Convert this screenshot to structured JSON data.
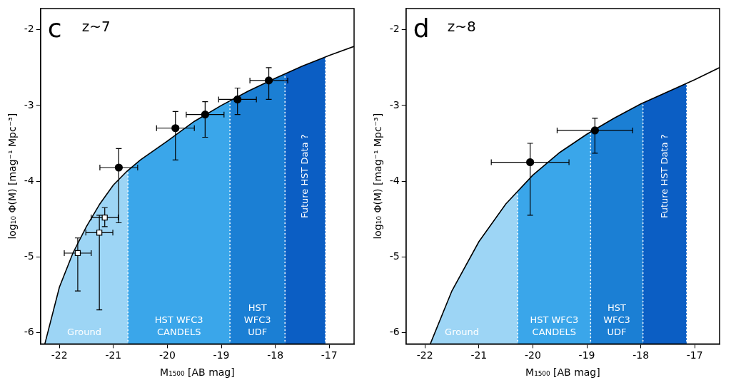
{
  "chart_data": [
    {
      "type": "scatter",
      "panel": "c",
      "title": "z~7",
      "x_label": "M₁₅₀₀ [AB mag]",
      "y_label": "log₁₀ Φ(M) [mag⁻¹ Mpc⁻³]",
      "xlim": [
        -22.35,
        -16.54
      ],
      "xticks": [
        -22,
        -21,
        -20,
        -19,
        -18,
        -17
      ],
      "ylim": [
        -6.15,
        -1.72
      ],
      "yticks": [
        -6,
        -5,
        -4,
        -3,
        -2
      ],
      "grid": false,
      "bands": [
        {
          "text_lines": [
            "Ground"
          ],
          "range": [
            -22.35,
            -20.73
          ],
          "color": "#9dd5f5"
        },
        {
          "text_lines": [
            "HST WFC3",
            "CANDELS"
          ],
          "range": [
            -20.73,
            -18.84
          ],
          "color": "#3aa6ea"
        },
        {
          "text_lines": [
            "HST",
            "WFC3",
            "UDF"
          ],
          "range": [
            -18.84,
            -17.82
          ],
          "color": "#1b7fd4"
        },
        {
          "text_lines": [
            "Future HST Data ?"
          ],
          "range": [
            -17.82,
            -17.07
          ],
          "color": "#0b5ec4"
        }
      ],
      "series": [
        {
          "type": "line",
          "color": "#000000",
          "x": [
            -22.27,
            -22,
            -21.75,
            -21.5,
            -21.25,
            -21,
            -20.75,
            -20.5,
            -20,
            -19.5,
            -19,
            -18.5,
            -18,
            -17.5,
            -17,
            -16.54
          ],
          "values": [
            -6.15,
            -5.4,
            -4.95,
            -4.6,
            -4.3,
            -4.05,
            -3.87,
            -3.72,
            -3.47,
            -3.21,
            -3.0,
            -2.81,
            -2.64,
            -2.48,
            -2.34,
            -2.22
          ]
        },
        {
          "type": "scatter",
          "marker": "circle",
          "color": "#000000",
          "x": [
            -20.9,
            -19.85,
            -19.3,
            -18.7,
            -18.12
          ],
          "values": [
            -3.82,
            -3.3,
            -3.12,
            -2.92,
            -2.67
          ],
          "x_err": [
            0.35,
            0.35,
            0.35,
            0.35,
            0.35
          ],
          "y_err": [
            [
              0.73,
              0.25
            ],
            [
              0.42,
              0.22
            ],
            [
              0.3,
              0.17
            ],
            [
              0.2,
              0.15
            ],
            [
              0.25,
              0.17
            ]
          ]
        },
        {
          "type": "scatter",
          "marker": "square",
          "color": "#000000",
          "x": [
            -21.66,
            -21.26,
            -21.16
          ],
          "values": [
            -4.95,
            -4.68,
            -4.48
          ],
          "x_err": [
            0.25,
            0.25,
            0.25
          ],
          "y_err": [
            [
              0.5,
              0.2
            ],
            [
              1.02,
              0.23
            ],
            [
              0.12,
              0.13
            ]
          ]
        }
      ]
    },
    {
      "type": "scatter",
      "panel": "d",
      "title": "z~8",
      "x_label": "M₁₅₀₀ [AB mag]",
      "y_label": "log₁₀ Φ(M) [mag⁻¹ Mpc⁻³]",
      "xlim": [
        -22.35,
        -16.54
      ],
      "xticks": [
        -22,
        -21,
        -20,
        -19,
        -18,
        -17
      ],
      "ylim": [
        -6.15,
        -1.72
      ],
      "yticks": [
        -6,
        -5,
        -4,
        -3,
        -2
      ],
      "grid": false,
      "bands": [
        {
          "text_lines": [
            "Ground"
          ],
          "range": [
            -22.35,
            -20.28
          ],
          "color": "#9dd5f5"
        },
        {
          "text_lines": [
            "HST WFC3",
            "CANDELS"
          ],
          "range": [
            -20.28,
            -18.93
          ],
          "color": "#3aa6ea"
        },
        {
          "text_lines": [
            "HST",
            "WFC3",
            "UDF"
          ],
          "range": [
            -18.93,
            -17.96
          ],
          "color": "#1b7fd4"
        },
        {
          "text_lines": [
            "Future HST Data ?"
          ],
          "range": [
            -17.96,
            -17.15
          ],
          "color": "#0b5ec4"
        }
      ],
      "series": [
        {
          "type": "line",
          "color": "#000000",
          "x": [
            -21.9,
            -21.5,
            -21,
            -20.5,
            -20,
            -19.5,
            -19,
            -18.5,
            -18,
            -17.5,
            -17,
            -16.54
          ],
          "values": [
            -6.15,
            -5.45,
            -4.8,
            -4.3,
            -3.92,
            -3.62,
            -3.38,
            -3.17,
            -2.98,
            -2.82,
            -2.66,
            -2.5
          ]
        },
        {
          "type": "scatter",
          "marker": "circle",
          "color": "#000000",
          "x": [
            -20.05,
            -18.85
          ],
          "values": [
            -3.75,
            -3.33
          ],
          "x_err": [
            0.72,
            0.7
          ],
          "y_err": [
            [
              0.7,
              0.25
            ],
            [
              0.3,
              0.16
            ]
          ]
        }
      ]
    }
  ]
}
